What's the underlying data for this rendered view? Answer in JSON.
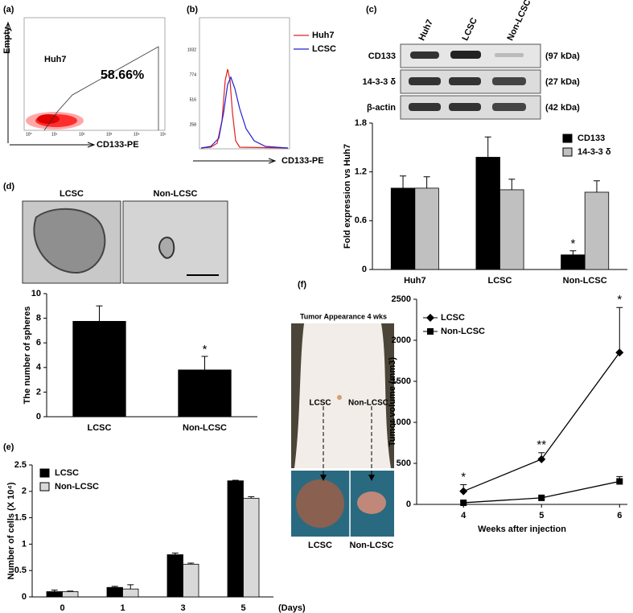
{
  "panels": {
    "labels": [
      "(a)",
      "(b)",
      "(c)",
      "(d)",
      "(e)",
      "(f)"
    ],
    "a": {
      "sample": "Huh7",
      "percent": "58.66%",
      "y_label": "Empty",
      "x_label": "CD133-PE",
      "ticks": [
        "10⁰",
        "10¹",
        "10²",
        "10³",
        "10⁴",
        "10⁵"
      ]
    },
    "b": {
      "x_label": "CD133-PE",
      "legend": [
        {
          "name": "Huh7",
          "color": "#e02020"
        },
        {
          "name": "LCSC",
          "color": "#2020d0"
        }
      ],
      "ticks": [
        "258",
        "516",
        "774",
        "1032"
      ]
    },
    "c": {
      "lanes": [
        "Huh7",
        "LCSC",
        "Non-LCSC"
      ],
      "bands": [
        {
          "name": "CD133",
          "size": "(97 kDa)"
        },
        {
          "name": "14-3-3 δ",
          "size": "(27 kDa)"
        },
        {
          "name": "β-actin",
          "size": "(42 kDa)"
        }
      ]
    },
    "d": {
      "image_labels": [
        "LCSC",
        "Non-LCSC"
      ]
    },
    "f": {
      "photo_title": "Tumor Appearance 4 wks",
      "photo_labels": [
        "LCSC",
        "Non-LCSC"
      ],
      "tumor_labels": [
        "LCSC",
        "Non-LCSC"
      ]
    }
  },
  "chart_data": [
    {
      "type": "bar",
      "ylabel": "Fold expression vs Huh7",
      "categories": [
        "Huh7",
        "LCSC",
        "Non-LCSC"
      ],
      "series": [
        {
          "name": "CD133",
          "color": "#000000",
          "values": [
            1.0,
            1.38,
            0.18
          ],
          "errors": [
            0.15,
            0.25,
            0.05
          ],
          "annotations": [
            null,
            null,
            "*"
          ]
        },
        {
          "name": "14-3-3 δ",
          "color": "#c0c0c0",
          "values": [
            1.0,
            0.98,
            0.95
          ],
          "errors": [
            0.14,
            0.13,
            0.14
          ],
          "annotations": [
            null,
            null,
            null
          ]
        }
      ],
      "ylim": [
        0,
        1.8
      ],
      "yticks": [
        0,
        0.6,
        1.2,
        1.8
      ],
      "legend": "upper right"
    },
    {
      "type": "bar",
      "ylabel": "The number of spheres",
      "categories": [
        "LCSC",
        "Non-LCSC"
      ],
      "series": [
        {
          "color": "#000000",
          "values": [
            7.75,
            3.8
          ],
          "errors": [
            1.25,
            1.1
          ],
          "annotations": [
            null,
            "*"
          ]
        }
      ],
      "ylim": [
        0,
        10
      ],
      "yticks": [
        0,
        2,
        4,
        6,
        8,
        10
      ]
    },
    {
      "type": "bar",
      "ylabel": "Number of cells (X 10⁴)",
      "xlabel": "(Days)",
      "categories": [
        "0",
        "1",
        "3",
        "5"
      ],
      "series": [
        {
          "name": "LCSC",
          "color": "#000000",
          "values": [
            0.1,
            0.18,
            0.8,
            2.2
          ],
          "errors": [
            0.03,
            0.02,
            0.03,
            0.01
          ],
          "annotations": [
            null,
            null,
            null,
            null
          ]
        },
        {
          "name": "Non-LCSC",
          "color": "#d8d8d8",
          "values": [
            0.1,
            0.15,
            0.62,
            1.87
          ],
          "errors": [
            0.01,
            0.08,
            0.02,
            0.03
          ],
          "annotations": [
            null,
            null,
            null,
            null
          ]
        }
      ],
      "ylim": [
        0,
        2.5
      ],
      "yticks": [
        0,
        0.5,
        1,
        1.5,
        2,
        2.5
      ],
      "legend": "upper left"
    },
    {
      "type": "line",
      "ylabel": "Tumor volume (mm3)",
      "xlabel": "Weeks after injection",
      "x": [
        4,
        5,
        6
      ],
      "series": [
        {
          "name": "LCSC",
          "color": "#000000",
          "marker": "diamond",
          "values": [
            160,
            550,
            1850
          ],
          "errors": [
            80,
            80,
            550
          ],
          "annotations": [
            "*",
            "**",
            "*"
          ]
        },
        {
          "name": "Non-LCSC",
          "color": "#000000",
          "marker": "square",
          "values": [
            20,
            80,
            280
          ],
          "errors": [
            10,
            15,
            60
          ],
          "annotations": [
            null,
            null,
            null
          ]
        }
      ],
      "xlim": [
        3.4,
        6.1
      ],
      "xticks": [
        4,
        5,
        6
      ],
      "ylim": [
        0,
        2500
      ],
      "yticks": [
        0,
        500,
        1000,
        1500,
        2000,
        2500
      ],
      "legend": "upper left"
    }
  ]
}
